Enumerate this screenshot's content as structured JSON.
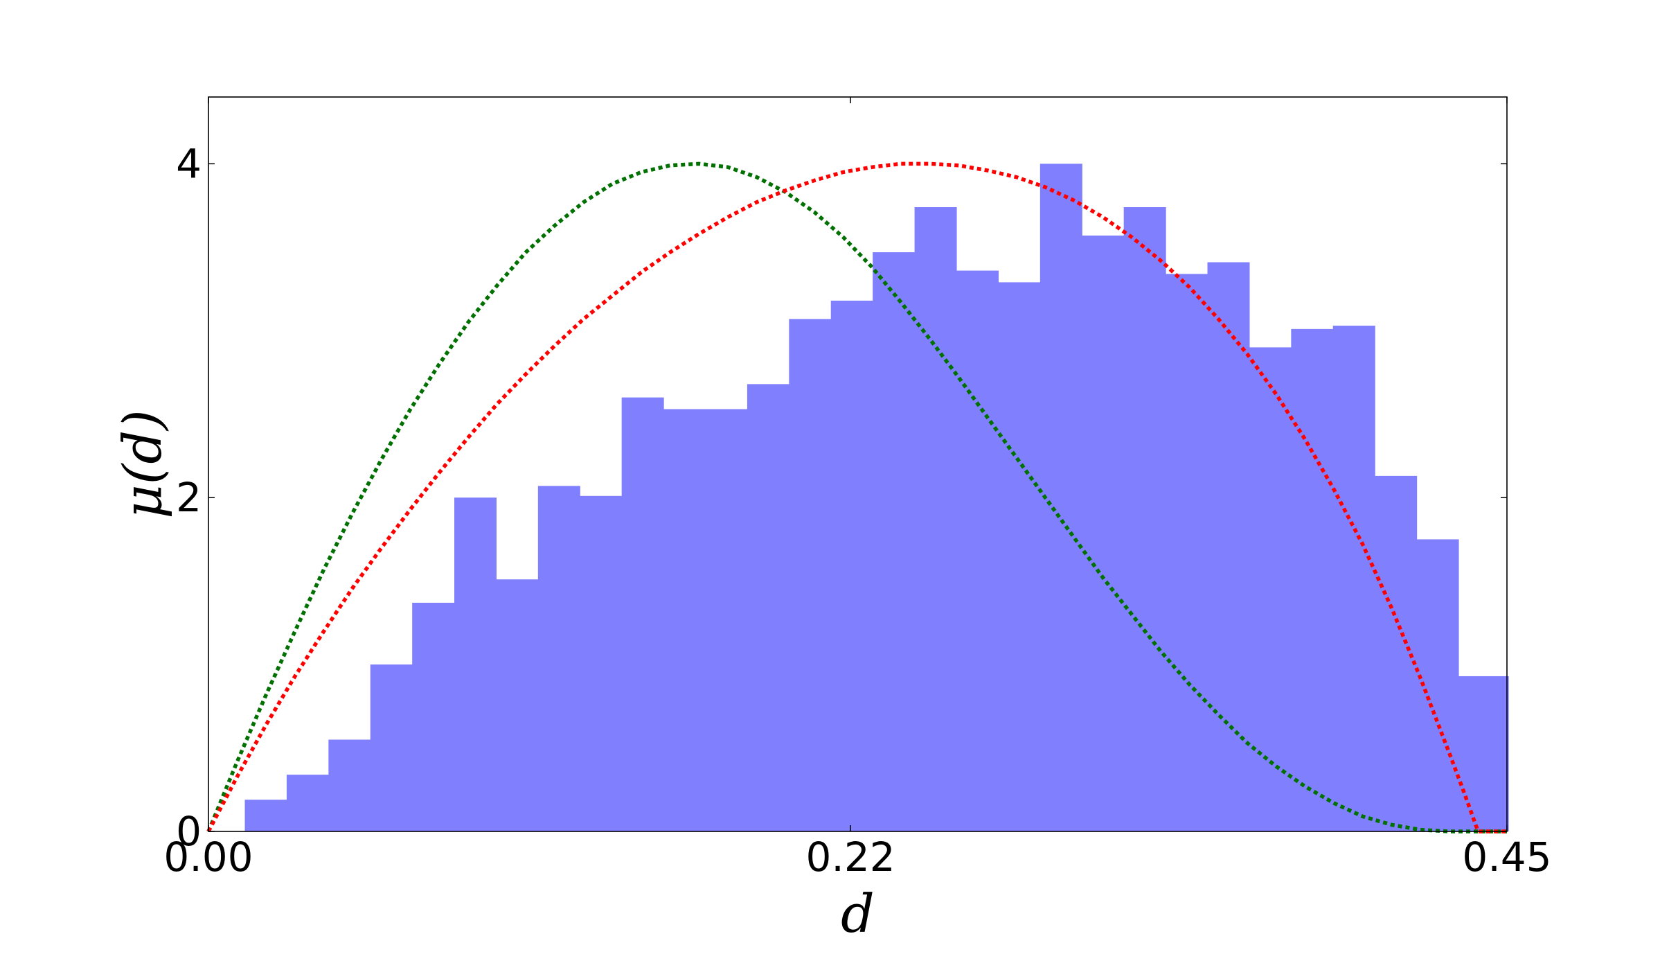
{
  "chart_data": {
    "type": "bar",
    "title": "",
    "xlabel": "d",
    "ylabel": "μ(d)",
    "xlim": [
      0.0,
      0.45
    ],
    "ylim": [
      0,
      4.4
    ],
    "grid": false,
    "x_ticks": [
      {
        "value": 0.0,
        "label": "0.00"
      },
      {
        "value": 0.2225,
        "label": "0.22"
      },
      {
        "value": 0.45,
        "label": "0.45"
      }
    ],
    "y_ticks": [
      {
        "value": 0,
        "label": "0"
      },
      {
        "value": 2,
        "label": "2"
      },
      {
        "value": 4,
        "label": "4"
      }
    ],
    "histogram": {
      "color": "#8080ff",
      "bin_edges": [
        0.0126,
        0.0271,
        0.0416,
        0.0561,
        0.0706,
        0.0852,
        0.0997,
        0.1142,
        0.1287,
        0.1432,
        0.1577,
        0.1722,
        0.1867,
        0.2012,
        0.2157,
        0.2302,
        0.2447,
        0.2592,
        0.2737,
        0.2882,
        0.3027,
        0.3172,
        0.3317,
        0.3462,
        0.3607,
        0.3752,
        0.3897,
        0.4042,
        0.4187,
        0.4332,
        0.4477,
        0.4505
      ],
      "values": [
        0.19,
        0.34,
        0.55,
        1.0,
        1.37,
        2.0,
        1.51,
        2.07,
        2.01,
        2.6,
        2.53,
        2.53,
        2.68,
        3.07,
        3.18,
        3.47,
        3.74,
        3.36,
        3.29,
        4.0,
        3.57,
        3.74,
        3.34,
        3.41,
        2.9,
        3.01,
        3.03,
        2.13,
        1.75,
        0.93,
        0.93
      ]
    },
    "series": [
      {
        "color": "#007000",
        "style": "dotted",
        "x": [
          0.0,
          0.01,
          0.02,
          0.03,
          0.04,
          0.05,
          0.06,
          0.07,
          0.08,
          0.09,
          0.1,
          0.11,
          0.12,
          0.13,
          0.14,
          0.15,
          0.16,
          0.17,
          0.18,
          0.19,
          0.2,
          0.21,
          0.22,
          0.23,
          0.24,
          0.25,
          0.26,
          0.27,
          0.28,
          0.29,
          0.3,
          0.31,
          0.32,
          0.33,
          0.34,
          0.35,
          0.36,
          0.37,
          0.38,
          0.39,
          0.4,
          0.41,
          0.42,
          0.43,
          0.44,
          0.45
        ],
        "y": [
          0.0,
          0.42,
          0.82,
          1.2,
          1.57,
          1.91,
          2.23,
          2.53,
          2.8,
          3.05,
          3.27,
          3.47,
          3.63,
          3.77,
          3.88,
          3.95,
          3.99,
          4.0,
          3.98,
          3.92,
          3.83,
          3.71,
          3.56,
          3.38,
          3.17,
          2.95,
          2.72,
          2.48,
          2.24,
          2.0,
          1.76,
          1.52,
          1.3,
          1.08,
          0.88,
          0.7,
          0.53,
          0.39,
          0.27,
          0.17,
          0.09,
          0.04,
          0.01,
          0.0,
          0.0,
          0.0
        ]
      },
      {
        "color": "#ff0000",
        "style": "dotted",
        "x": [
          0.0,
          0.01,
          0.02,
          0.03,
          0.04,
          0.05,
          0.06,
          0.07,
          0.08,
          0.09,
          0.1,
          0.11,
          0.12,
          0.13,
          0.14,
          0.15,
          0.16,
          0.17,
          0.18,
          0.19,
          0.2,
          0.21,
          0.22,
          0.23,
          0.24,
          0.25,
          0.26,
          0.27,
          0.28,
          0.29,
          0.3,
          0.31,
          0.32,
          0.33,
          0.34,
          0.35,
          0.36,
          0.37,
          0.38,
          0.39,
          0.4,
          0.41,
          0.42,
          0.43,
          0.435,
          0.44,
          0.445,
          0.45
        ],
        "y": [
          0.0,
          0.33,
          0.64,
          0.93,
          1.2,
          1.46,
          1.7,
          1.93,
          2.15,
          2.36,
          2.56,
          2.74,
          2.91,
          3.07,
          3.21,
          3.35,
          3.47,
          3.58,
          3.68,
          3.77,
          3.84,
          3.9,
          3.95,
          3.98,
          4.0,
          4.0,
          3.99,
          3.96,
          3.92,
          3.86,
          3.78,
          3.68,
          3.56,
          3.42,
          3.26,
          3.07,
          2.86,
          2.62,
          2.35,
          2.05,
          1.72,
          1.34,
          0.92,
          0.47,
          0.24,
          0.0,
          0.0,
          0.0
        ]
      }
    ]
  }
}
